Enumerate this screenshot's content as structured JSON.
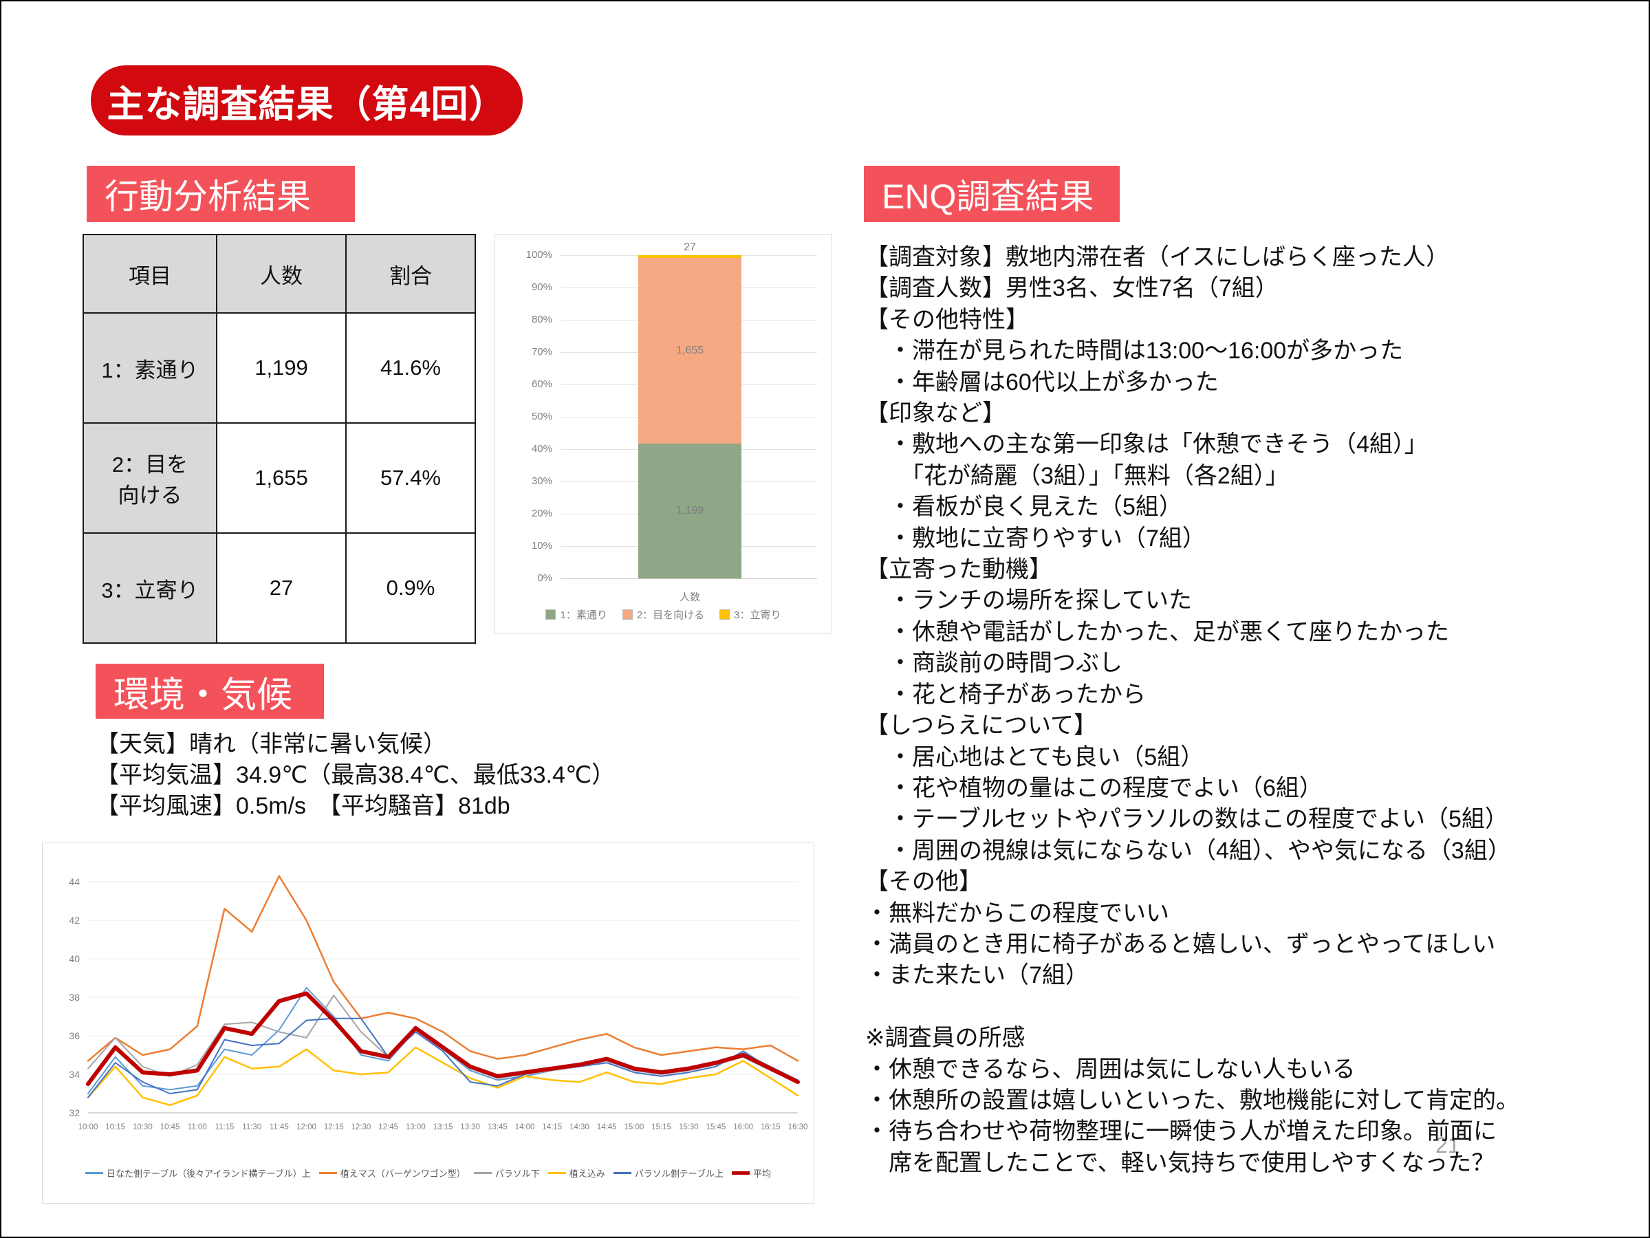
{
  "slide": {
    "title": "主な調査結果（第4回）",
    "page_number": "21"
  },
  "colors": {
    "title_bg": "#d20a10",
    "section_label_bg": "#f4525a",
    "table_header_bg": "#d9d9d9",
    "page_number": "#a6a6a6",
    "axis_text": "#808080",
    "legend_text": "#595959"
  },
  "behavior_section": {
    "label": "行動分析結果",
    "table": {
      "headers": [
        "項目",
        "人数",
        "割合"
      ],
      "rows": [
        [
          "1：素通り",
          "1,199",
          "41.6%"
        ],
        [
          "2：目を\n向ける",
          "1,655",
          "57.4%"
        ],
        [
          "3：立寄り",
          "27",
          "0.9%"
        ]
      ]
    }
  },
  "env_section": {
    "label": "環境・気候",
    "lines": [
      "【天気】晴れ（非常に暑い気候）",
      "【平均気温】34.9℃（最高38.4℃、最低33.4℃）",
      "【平均風速】0.5m/s　【平均騒音】81db"
    ]
  },
  "enq_section": {
    "label": "ENQ調査結果",
    "lines": [
      "【調査対象】敷地内滞在者（イスにしばらく座った人）",
      "【調査人数】男性3名、女性7名（7組）",
      "【その他特性】",
      "　・滞在が見られた時間は13:00～16:00が多かった",
      "　・年齢層は60代以上が多かった",
      "【印象など】",
      "　・敷地への主な第一印象は「休憩できそう（4組）」",
      "　　「花が綺麗（3組）」「無料（各2組）」",
      "　・看板が良く見えた（5組）",
      "　・敷地に立寄りやすい（7組）",
      "【立寄った動機】",
      "　・ランチの場所を探していた",
      "　・休憩や電話がしたかった、足が悪くて座りたかった",
      "　・商談前の時間つぶし",
      "　・花と椅子があったから",
      "【しつらえについて】",
      "　・居心地はとても良い（5組）",
      "　・花や植物の量はこの程度でよい（6組）",
      "　・テーブルセットやパラソルの数はこの程度でよい（5組）",
      "　・周囲の視線は気にならない（4組）、やや気になる（3組）",
      "【その他】",
      "・無料だからこの程度でいい",
      "・満員のとき用に椅子があると嬉しい、ずっとやってほしい",
      "・また来たい（7組）",
      "",
      "※調査員の所感",
      "・休憩できるなら、周囲は気にしない人もいる",
      "・休憩所の設置は嬉しいといった、敷地機能に対して肯定的。",
      "・待ち合わせや荷物整理に一瞬使う人が増えた印象。前面に",
      "　席を配置したことで、軽い気持ちで使用しやすくなった？"
    ]
  },
  "chart_data": [
    {
      "type": "bar",
      "subtype": "stacked-100-percent",
      "categories": [
        "人数"
      ],
      "xlabel": "人数",
      "series": [
        {
          "name": "1：素通り",
          "color": "#8fa786",
          "values": [
            1199
          ],
          "label": "1,199"
        },
        {
          "name": "2：目を向ける",
          "color": "#f5a982",
          "values": [
            1655
          ],
          "label": "1,655"
        },
        {
          "name": "3：立寄り",
          "color": "#ffc000",
          "values": [
            27
          ],
          "label": "27"
        }
      ],
      "y_ticks": [
        "0%",
        "10%",
        "20%",
        "30%",
        "40%",
        "50%",
        "60%",
        "70%",
        "80%",
        "90%",
        "100%"
      ],
      "ylim": [
        0,
        100
      ],
      "grid": true,
      "legend_position": "bottom"
    },
    {
      "type": "line",
      "title": "",
      "x": [
        "10:00",
        "10:15",
        "10:30",
        "10:45",
        "11:00",
        "11:15",
        "11:30",
        "11:45",
        "12:00",
        "12:15",
        "12:30",
        "12:45",
        "13:00",
        "13:15",
        "13:30",
        "13:45",
        "14:00",
        "14:15",
        "14:30",
        "14:45",
        "15:00",
        "15:15",
        "15:30",
        "15:45",
        "16:00",
        "16:15",
        "16:30"
      ],
      "y_ticks": [
        32,
        34,
        36,
        38,
        40,
        42,
        44
      ],
      "ylim": [
        32,
        44.6
      ],
      "grid": true,
      "legend_position": "bottom",
      "series": [
        {
          "name": "日なた側テーブル（後々アイランド横テーブル）上",
          "color": "#5b9bd5",
          "width": 2,
          "values": [
            33.0,
            34.9,
            33.4,
            33.2,
            33.4,
            35.3,
            35.0,
            36.3,
            38.5,
            37.0,
            35.0,
            34.7,
            36.3,
            35.3,
            34.2,
            33.7,
            33.9,
            34.2,
            34.4,
            34.7,
            34.2,
            34.0,
            34.2,
            34.5,
            35.1,
            34.4,
            33.7
          ]
        },
        {
          "name": "植えマス（バーゲンワゴン型）",
          "color": "#ed7d31",
          "width": 2.5,
          "values": [
            34.7,
            35.9,
            35.0,
            35.3,
            36.5,
            42.6,
            41.4,
            44.3,
            42.0,
            38.8,
            36.9,
            37.2,
            36.9,
            36.2,
            35.2,
            34.8,
            35.0,
            35.4,
            35.8,
            36.1,
            35.4,
            35.0,
            35.2,
            35.4,
            35.3,
            35.5,
            34.7
          ]
        },
        {
          "name": "パラソル下",
          "color": "#a5a5a5",
          "width": 2,
          "values": [
            34.3,
            35.9,
            34.4,
            33.9,
            34.5,
            36.6,
            36.7,
            36.2,
            35.9,
            38.1,
            36.2,
            34.9,
            36.2,
            35.3,
            34.3,
            33.8,
            34.0,
            34.2,
            34.4,
            34.7,
            34.2,
            34.0,
            34.2,
            34.5,
            34.9,
            34.2,
            33.6
          ]
        },
        {
          "name": "植え込み",
          "color": "#ffc000",
          "width": 2.5,
          "values": [
            32.8,
            34.4,
            32.8,
            32.4,
            32.9,
            34.9,
            34.3,
            34.4,
            35.3,
            34.2,
            34.0,
            34.1,
            35.4,
            34.6,
            33.8,
            33.3,
            33.9,
            33.7,
            33.6,
            34.1,
            33.6,
            33.5,
            33.8,
            34.0,
            34.7,
            33.8,
            32.9
          ]
        },
        {
          "name": "パラソル側テーブル上",
          "color": "#4472c4",
          "width": 2,
          "values": [
            32.8,
            34.6,
            33.6,
            33.0,
            33.2,
            35.8,
            35.5,
            35.6,
            36.8,
            36.9,
            36.9,
            34.9,
            36.2,
            35.2,
            33.6,
            33.4,
            34.0,
            34.3,
            34.4,
            34.6,
            34.1,
            33.9,
            34.1,
            34.4,
            35.2,
            34.3,
            33.7
          ]
        },
        {
          "name": "平均",
          "color": "#c00000",
          "width": 6,
          "values": [
            33.5,
            35.4,
            34.1,
            34.0,
            34.2,
            36.4,
            36.1,
            37.8,
            38.2,
            36.8,
            35.2,
            34.9,
            36.4,
            35.4,
            34.4,
            33.9,
            34.1,
            34.3,
            34.5,
            34.8,
            34.3,
            34.1,
            34.3,
            34.6,
            35.0,
            34.3,
            33.6
          ]
        }
      ]
    }
  ]
}
